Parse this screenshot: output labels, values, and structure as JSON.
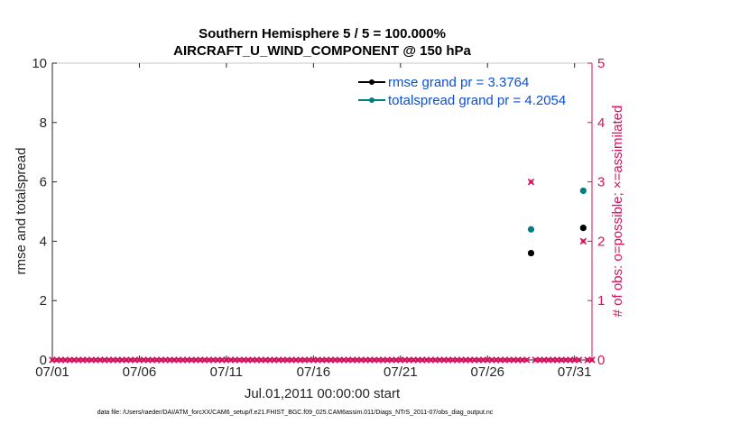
{
  "chart_data": {
    "type": "scatter",
    "title": "Southern Hemisphere 5 / 5 = 100.000%",
    "subtitle": "AIRCRAFT_U_WIND_COMPONENT @ 150 hPa",
    "xlabel": "Jul.01,2011 00:00:00 start",
    "ylabel_left": "rmse and totalspread",
    "ylabel_right": "# of obs: o=possible; ×=assimilated",
    "xlim": [
      0,
      31
    ],
    "ylim_left": [
      0,
      10
    ],
    "ylim_right": [
      0,
      5
    ],
    "x_tick_values": [
      0,
      5,
      10,
      15,
      20,
      25,
      30
    ],
    "x_tick_labels": [
      "07/01",
      "07/06",
      "07/11",
      "07/16",
      "07/21",
      "07/26",
      "07/31"
    ],
    "y_left_ticks": [
      0,
      2,
      4,
      6,
      8,
      10
    ],
    "y_right_ticks": [
      0,
      1,
      2,
      3,
      4,
      5
    ],
    "grid": false,
    "legend_placement": "top-right",
    "footer": "data file: /Users/raeder/DAI/ATM_forcXX/CAM6_setup/f.e21.FHIST_BGC.f09_025.CAM6assim.011/Diags_NTrS_2011-07/obs_diag_output.nc",
    "series": [
      {
        "name": "rmse grand pr = 3.3764",
        "axis": "left",
        "color": "#000000",
        "x": [
          27.5,
          30.5
        ],
        "y": [
          3.6,
          4.45
        ]
      },
      {
        "name": "totalspread grand pr = 4.2054",
        "axis": "left",
        "color": "#007f80",
        "x": [
          27.5,
          30.5
        ],
        "y": [
          4.4,
          5.7
        ]
      }
    ],
    "obs_counts": {
      "axis": "right",
      "color": "#d6105a",
      "x_start": 0,
      "x_step": 0.25,
      "x_end": 31,
      "nonzero": [
        {
          "x": 27.5,
          "y": 3
        },
        {
          "x": 30.5,
          "y": 2
        }
      ]
    }
  }
}
